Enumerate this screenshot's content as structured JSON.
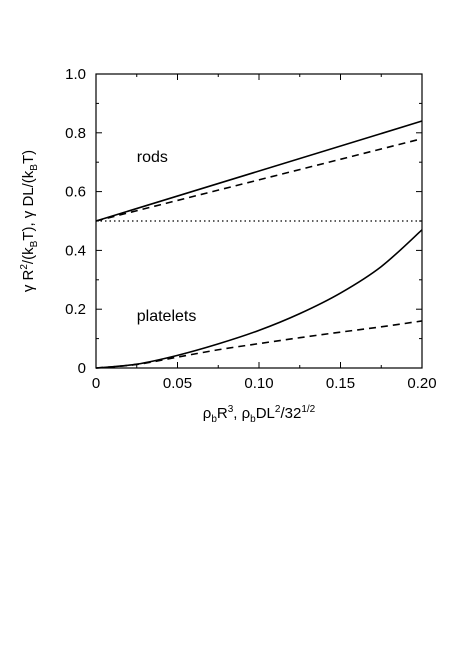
{
  "chart_data": {
    "type": "line",
    "title": "",
    "xlabel": {
      "parts": [
        {
          "t": "ρ"
        },
        {
          "t": "b",
          "sub": true
        },
        {
          "t": "R"
        },
        {
          "t": "3",
          "sup": true
        },
        {
          "t": ",  ρ"
        },
        {
          "t": "b",
          "sub": true
        },
        {
          "t": "DL"
        },
        {
          "t": "2",
          "sup": true
        },
        {
          "t": "/32"
        },
        {
          "t": "1/2",
          "sup": true
        }
      ]
    },
    "ylabel": {
      "parts": [
        {
          "t": "γ R"
        },
        {
          "t": "2",
          "sup": true
        },
        {
          "t": "/(k"
        },
        {
          "t": "B",
          "sub": true
        },
        {
          "t": "T),  γ DL/(k"
        },
        {
          "t": "B",
          "sub": true
        },
        {
          "t": "T)"
        }
      ]
    },
    "xlim": [
      0,
      0.2
    ],
    "ylim": [
      0,
      1.0
    ],
    "xticks": [
      0,
      0.05,
      0.1,
      0.15,
      0.2
    ],
    "xtick_labels": [
      "0",
      "0.05",
      "0.10",
      "0.15",
      "0.20"
    ],
    "yticks": [
      0,
      0.2,
      0.4,
      0.6,
      0.8,
      1.0
    ],
    "ytick_labels": [
      "0",
      "0.2",
      "0.4",
      "0.6",
      "0.8",
      "1.0"
    ],
    "annotations": [
      {
        "text": "rods",
        "x": 0.025,
        "y": 0.7
      },
      {
        "text": "platelets",
        "x": 0.025,
        "y": 0.16
      }
    ],
    "series": [
      {
        "style": "solid",
        "x": [
          0,
          0.2
        ],
        "y": [
          0.5,
          0.84
        ]
      },
      {
        "style": "dashed",
        "x": [
          0,
          0.2
        ],
        "y": [
          0.5,
          0.78
        ]
      },
      {
        "style": "dotted",
        "x": [
          0,
          0.2
        ],
        "y": [
          0.5,
          0.5
        ]
      },
      {
        "style": "solid",
        "x": [
          0,
          0.025,
          0.05,
          0.075,
          0.1,
          0.125,
          0.15,
          0.175,
          0.2
        ],
        "y": [
          0,
          0.013,
          0.043,
          0.082,
          0.128,
          0.185,
          0.255,
          0.345,
          0.47
        ]
      },
      {
        "style": "dashed",
        "x": [
          0,
          0.025,
          0.05,
          0.075,
          0.1,
          0.125,
          0.15,
          0.175,
          0.2
        ],
        "y": [
          0,
          0.012,
          0.037,
          0.062,
          0.083,
          0.103,
          0.122,
          0.14,
          0.16
        ]
      }
    ],
    "grid": false,
    "legend": "none"
  }
}
